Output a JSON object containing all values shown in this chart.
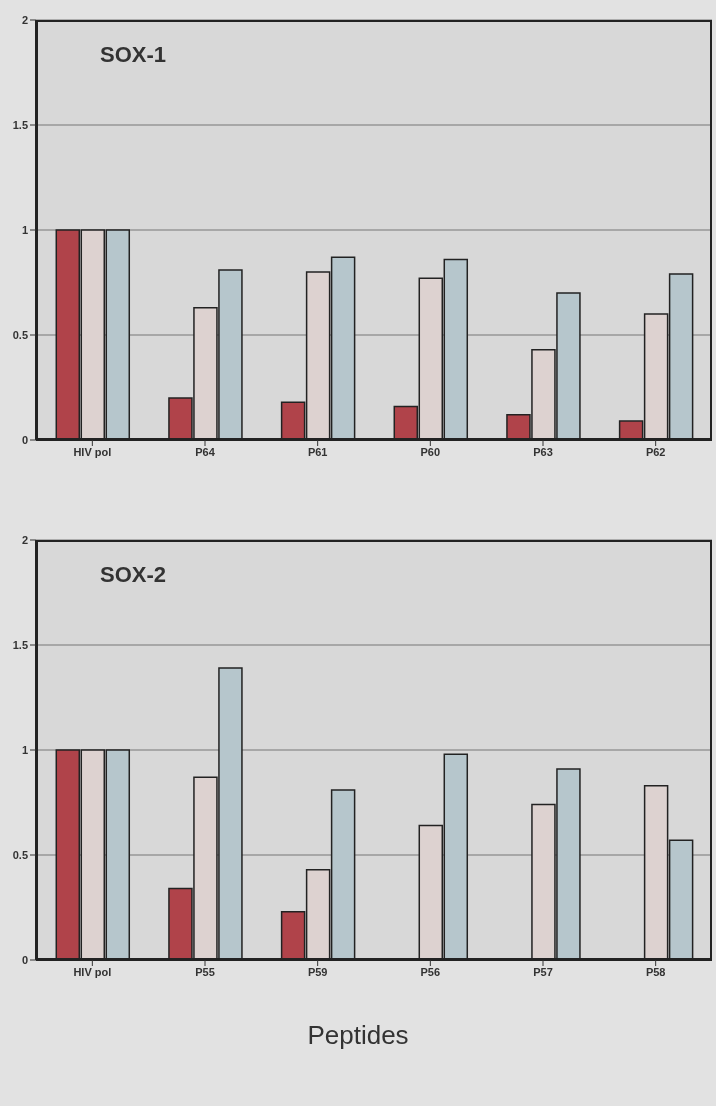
{
  "chart_data": [
    {
      "type": "bar",
      "title": "SOX-1",
      "categories": [
        "HIV pol",
        "P64",
        "P61",
        "P60",
        "P63",
        "P62"
      ],
      "series": [
        {
          "color": "#b0434a",
          "values": [
            1,
            0.2,
            0.18,
            0.16,
            0.12,
            0.09
          ]
        },
        {
          "color": "#ddd2d0",
          "values": [
            1,
            0.63,
            0.8,
            0.77,
            0.43,
            0.6
          ]
        },
        {
          "color": "#b6c6cc",
          "values": [
            1,
            0.81,
            0.87,
            0.86,
            0.7,
            0.79
          ]
        }
      ],
      "ylim": [
        0,
        2
      ],
      "yticks": [
        0,
        0.5,
        1,
        1.5,
        2
      ],
      "grid": "y",
      "legend": false
    },
    {
      "type": "bar",
      "title": "SOX-2",
      "xlabel": "Peptides",
      "categories": [
        "HIV pol",
        "P55",
        "P59",
        "P56",
        "P57",
        "P58"
      ],
      "series": [
        {
          "color": "#b0434a",
          "values": [
            1,
            0.34,
            0.23,
            null,
            null,
            null
          ]
        },
        {
          "color": "#ddd2d0",
          "values": [
            1,
            0.87,
            0.43,
            0.64,
            0.74,
            0.83
          ]
        },
        {
          "color": "#b6c6cc",
          "values": [
            1,
            1.39,
            0.81,
            0.98,
            0.91,
            0.57
          ]
        }
      ],
      "ylim": [
        0,
        2
      ],
      "yticks": [
        0,
        0.5,
        1,
        1.5,
        2
      ],
      "grid": "y",
      "legend": false
    }
  ]
}
